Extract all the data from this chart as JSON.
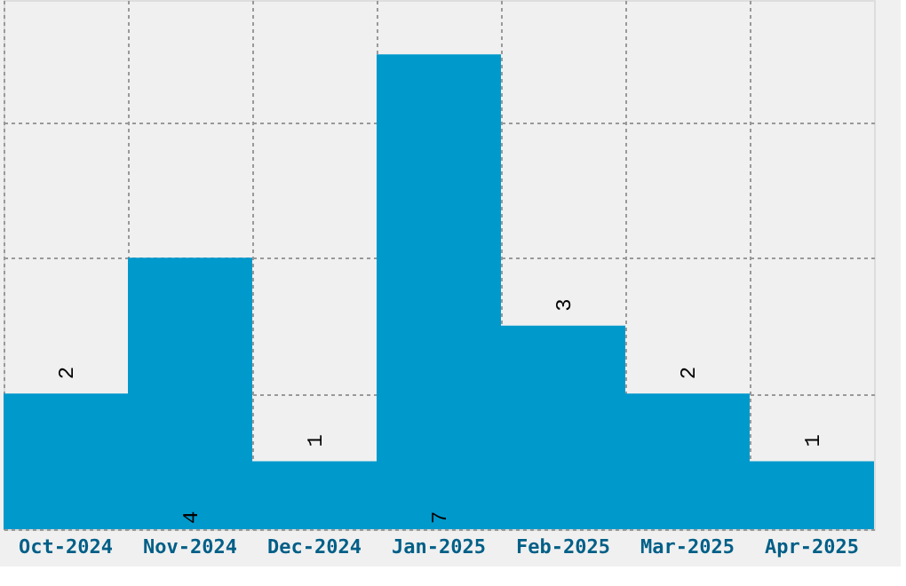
{
  "chart_data": {
    "type": "bar",
    "categories": [
      "Oct-2024",
      "Nov-2024",
      "Dec-2024",
      "Jan-2025",
      "Feb-2025",
      "Mar-2025",
      "Apr-2025"
    ],
    "values": [
      2,
      4,
      1,
      7,
      3,
      2,
      1
    ],
    "color": "#0099cc",
    "data_labels": true,
    "ylim": [
      0,
      7.8
    ],
    "grid": true,
    "tick_labels": "x"
  }
}
